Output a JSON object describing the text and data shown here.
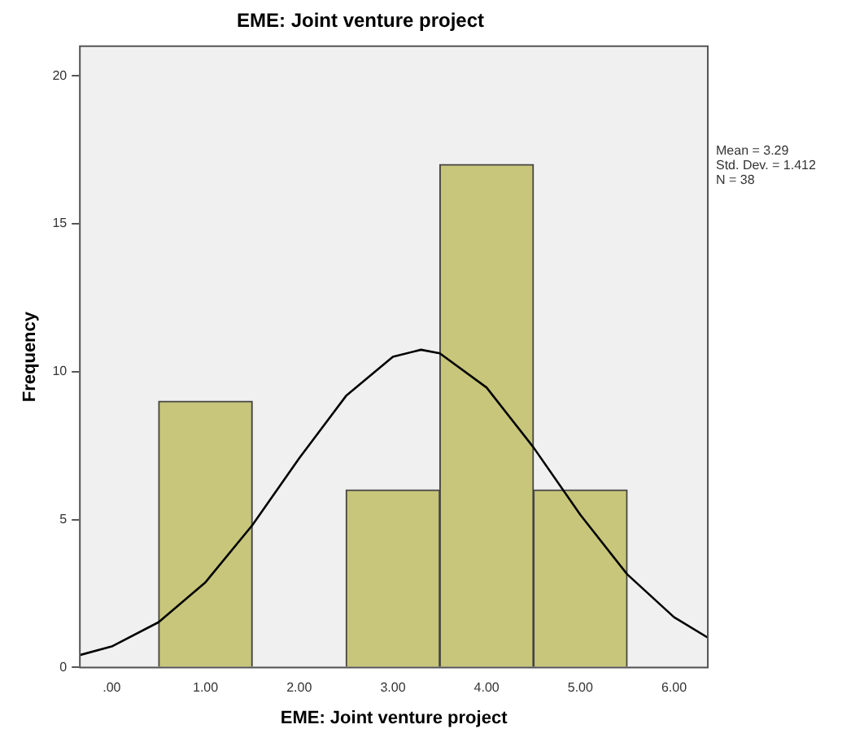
{
  "chart_data": {
    "type": "histogram",
    "title": "EME: Joint venture project",
    "xlabel": "EME: Joint venture project",
    "ylabel": "Frequency",
    "bins": [
      0.5,
      1.5,
      2.5,
      3.5,
      4.5,
      5.5
    ],
    "values": [
      9,
      0,
      6,
      17,
      6
    ],
    "color": "#c8c67a",
    "series": [
      {
        "type": "line",
        "color": "#000000",
        "x": [
          -0.34,
          0,
          0.5,
          1,
          1.5,
          2,
          2.5,
          3,
          3.3,
          3.5,
          4,
          4.5,
          5,
          5.5,
          6,
          6.36
        ],
        "values": [
          0.42,
          0.71,
          1.53,
          2.88,
          4.81,
          7.07,
          9.18,
          10.5,
          10.74,
          10.62,
          9.46,
          7.44,
          5.16,
          3.15,
          1.7,
          1.01
        ]
      }
    ],
    "xlim": [
      -0.34,
      6.36
    ],
    "xticks": [
      {
        "value": 0,
        "label": ".00"
      },
      {
        "value": 1,
        "label": "1.00"
      },
      {
        "value": 2,
        "label": "2.00"
      },
      {
        "value": 3,
        "label": "3.00"
      },
      {
        "value": 4,
        "label": "4.00"
      },
      {
        "value": 5,
        "label": "5.00"
      },
      {
        "value": 6,
        "label": "6.00"
      }
    ],
    "ylim": [
      0,
      21
    ],
    "yticks": [
      0,
      5,
      10,
      15,
      20
    ],
    "grid": false,
    "legend": false,
    "marker": "none",
    "annotations": [
      "Mean = 3.29",
      "Std. Dev. = 1.412",
      "N = 38"
    ]
  }
}
